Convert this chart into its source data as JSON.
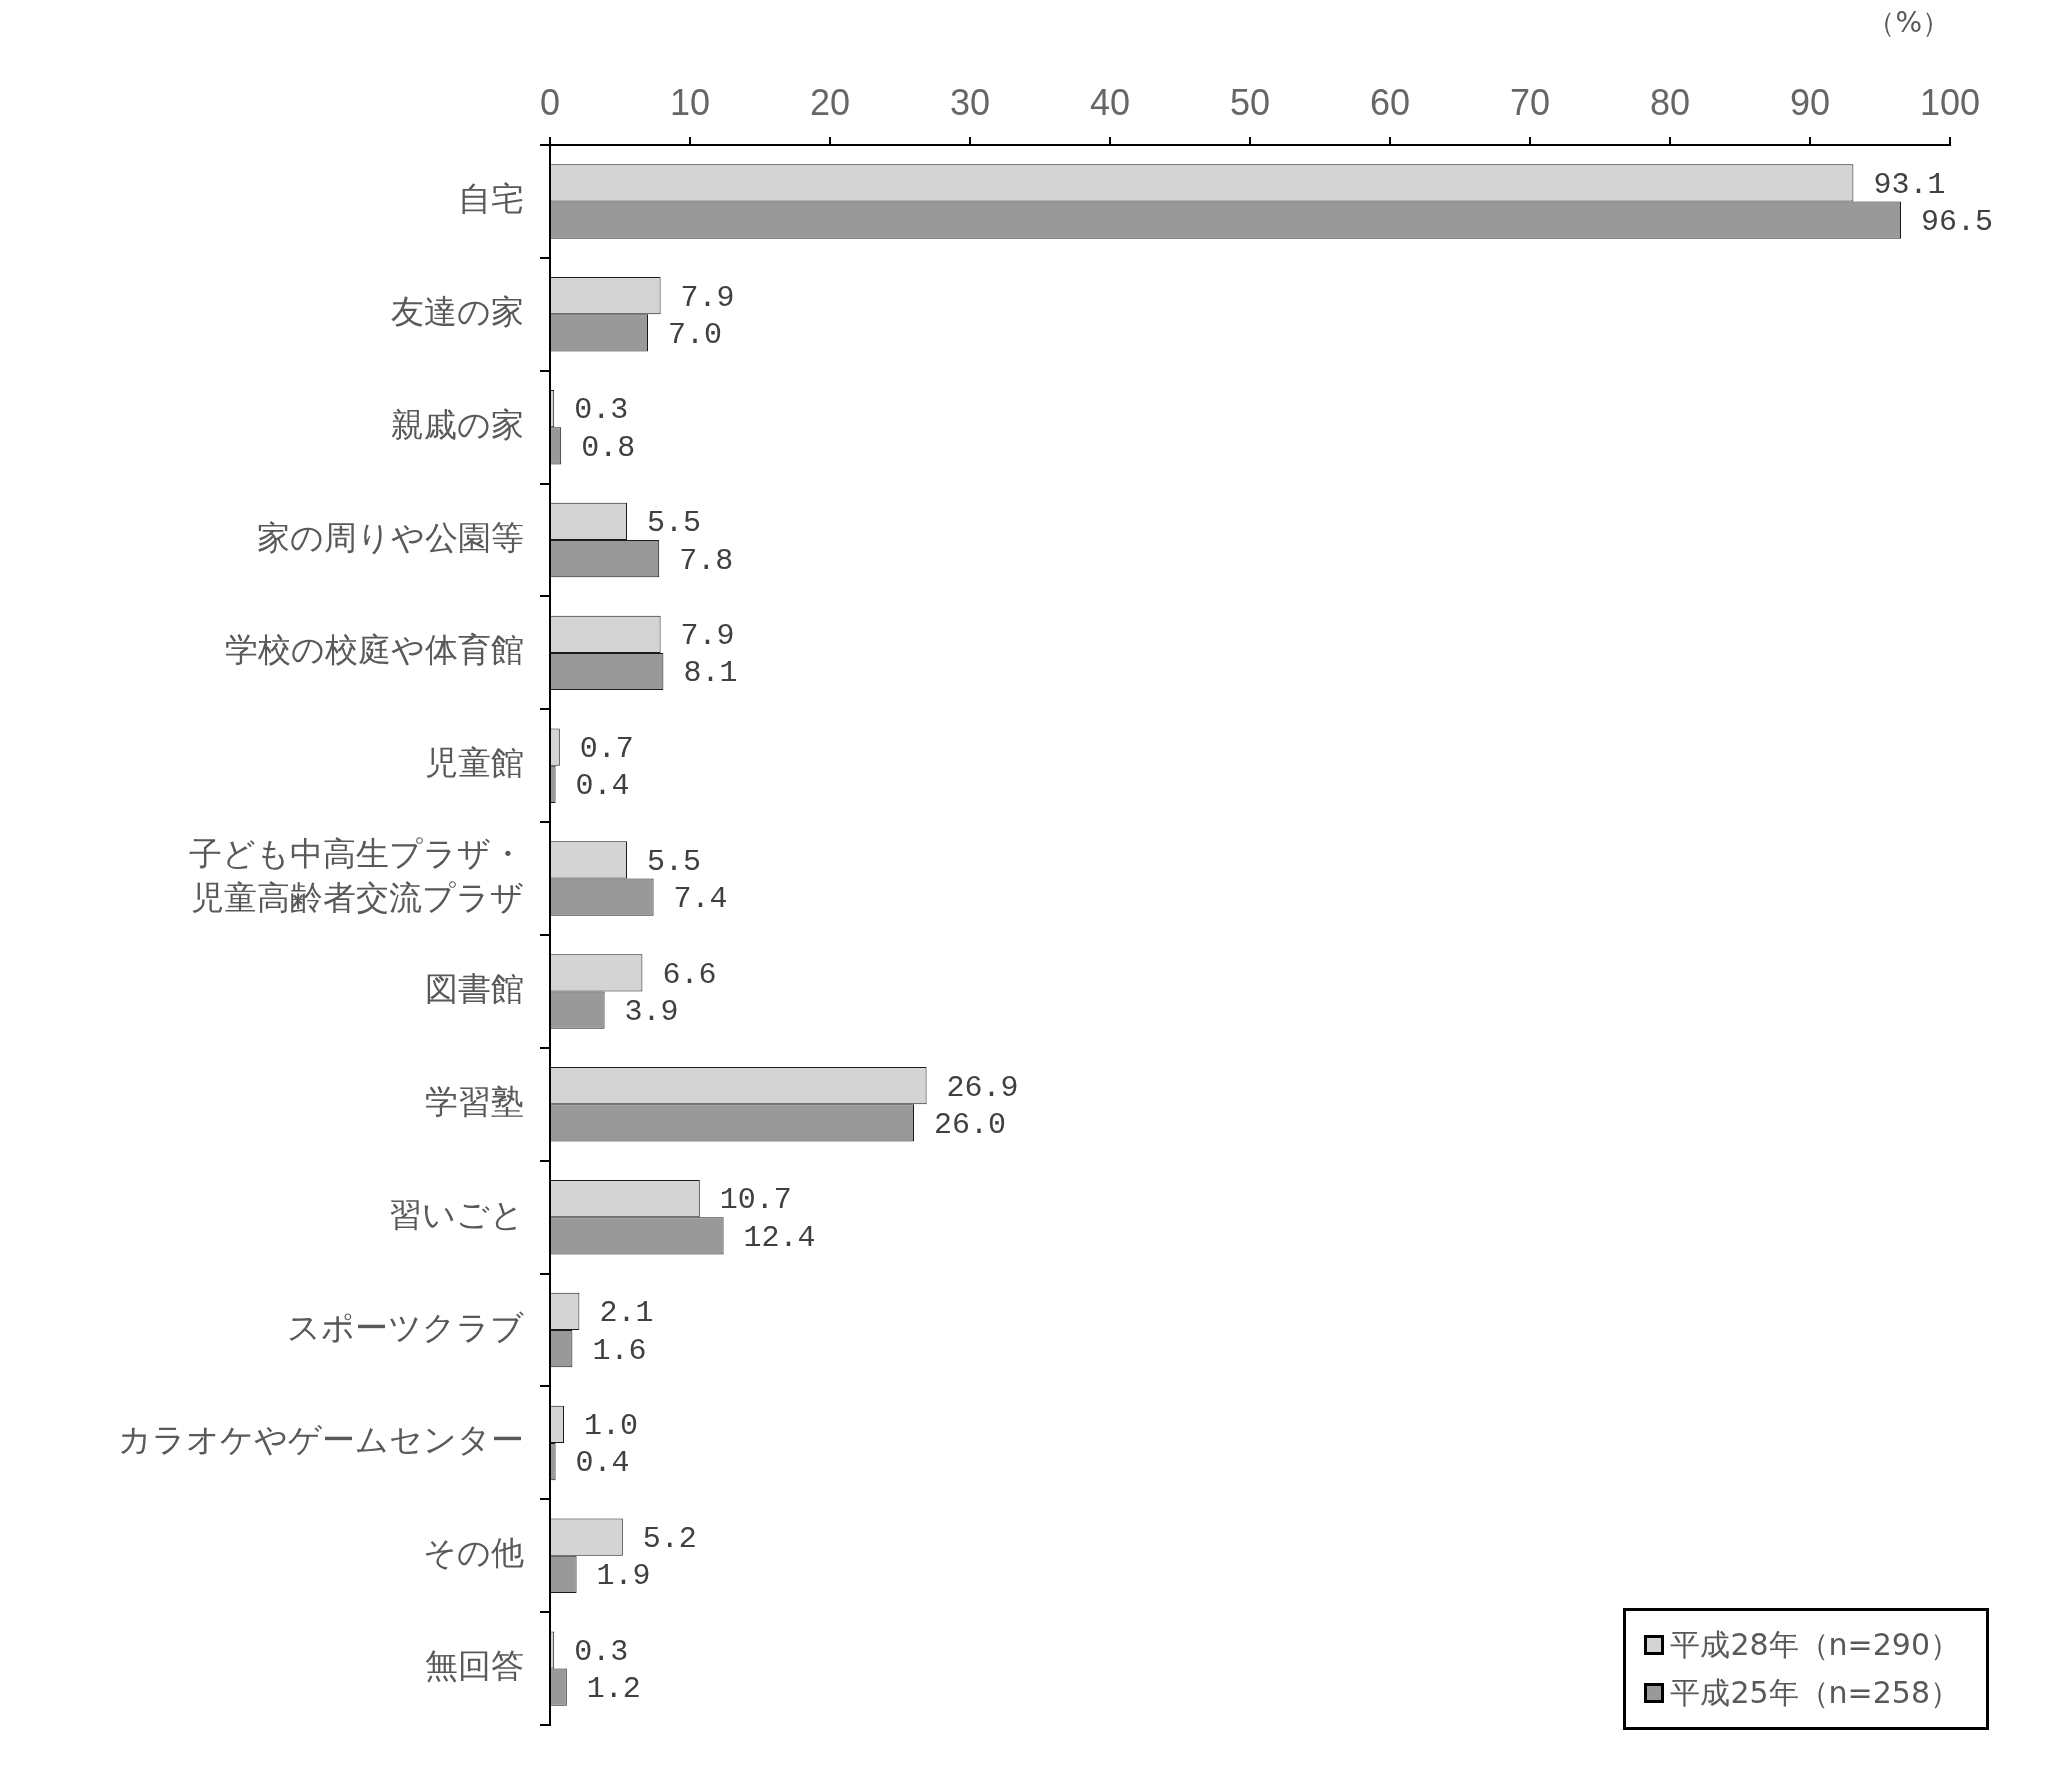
{
  "chart_data": {
    "type": "bar",
    "orientation": "horizontal",
    "xlabel": "（%）",
    "legend": "bottom right",
    "categories": [
      "自宅",
      "友達の家",
      "親戚の家",
      "家の周りや公園等",
      "学校の校庭や体育館",
      "児童館",
      "子ども中高生プラザ・児童高齢者交流プラザ",
      "図書館",
      "学習塾",
      "習いごと",
      "スポーツクラブ",
      "カラオケやゲームセンター",
      "その他",
      "無回答"
    ],
    "series": [
      {
        "name": "平成28年（n=290）",
        "color": "#d4d4d4",
        "values": [
          93.1,
          7.9,
          0.3,
          5.5,
          7.9,
          0.7,
          5.5,
          6.6,
          26.9,
          10.7,
          2.1,
          1.0,
          5.2,
          0.3
        ],
        "value_labels": [
          "93.1",
          "7.9",
          "0.3",
          "5.5",
          "7.9",
          "0.7",
          "5.5",
          "6.6",
          "26.9",
          "10.7",
          "2.1",
          "1.0",
          "5.2",
          "0.3"
        ]
      },
      {
        "name": "平成25年（n=258）",
        "color": "#999999",
        "values": [
          96.5,
          7.0,
          0.8,
          7.8,
          8.1,
          0.4,
          7.4,
          3.9,
          26.0,
          12.4,
          1.6,
          0.4,
          1.9,
          1.2
        ],
        "value_labels": [
          "96.5",
          "7.0",
          "0.8",
          "7.8",
          "8.1",
          "0.4",
          "7.4",
          "3.9",
          "26.0",
          "12.4",
          "1.6",
          "0.4",
          "1.9",
          "1.2"
        ]
      }
    ],
    "xlim": [
      0,
      100
    ],
    "xticks": [
      0,
      10,
      20,
      30,
      40,
      50,
      60,
      70,
      80,
      90,
      100
    ]
  }
}
